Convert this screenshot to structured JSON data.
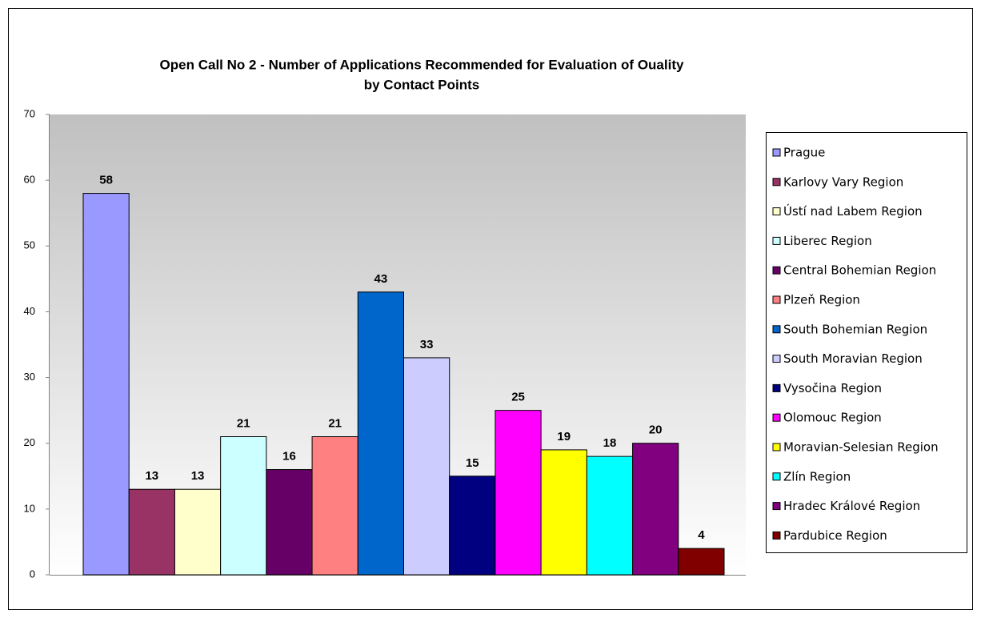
{
  "chart_data": {
    "type": "bar",
    "title": [
      "Open Call No 2 - Number of  Applications Recommended for Evaluation of Ouality",
      "by Contact Points"
    ],
    "ylim": [
      0,
      70
    ],
    "yticks": [
      0,
      10,
      20,
      30,
      40,
      50,
      60,
      70
    ],
    "legend": "right",
    "series": [
      {
        "name": "Prague",
        "color": "#9999ff",
        "values": [
          58
        ]
      },
      {
        "name": "Karlovy Vary Region",
        "color": "#993366",
        "values": [
          13
        ]
      },
      {
        "name": "Ústí nad Labem Region",
        "color": "#ffffcc",
        "values": [
          13
        ]
      },
      {
        "name": "Liberec Region",
        "color": "#ccffff",
        "values": [
          21
        ]
      },
      {
        "name": "Central Bohemian Region",
        "color": "#660066",
        "values": [
          16
        ]
      },
      {
        "name": "Plzeň Region",
        "color": "#ff8080",
        "values": [
          21
        ]
      },
      {
        "name": "South Bohemian Region",
        "color": "#0066cc",
        "values": [
          43
        ]
      },
      {
        "name": "South Moravian Region",
        "color": "#ccccff",
        "values": [
          33
        ]
      },
      {
        "name": "Vysočina Region",
        "color": "#000080",
        "values": [
          15
        ]
      },
      {
        "name": "Olomouc Region",
        "color": "#ff00ff",
        "values": [
          25
        ]
      },
      {
        "name": "Moravian-Selesian Region",
        "color": "#ffff00",
        "values": [
          19
        ]
      },
      {
        "name": "Zlín Region",
        "color": "#00ffff",
        "values": [
          18
        ]
      },
      {
        "name": "Hradec Králové Region",
        "color": "#800080",
        "values": [
          20
        ]
      },
      {
        "name": "Pardubice Region",
        "color": "#800000",
        "values": [
          4
        ]
      }
    ]
  }
}
